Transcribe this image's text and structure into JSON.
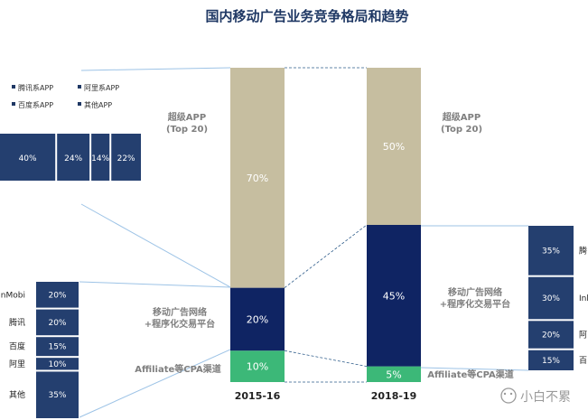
{
  "title": "国内移动广告业务竞争格局和趋势",
  "colors": {
    "super_app": "#c6bea0",
    "ad_network": "#0f2463",
    "affiliate": "#3cb878",
    "box": "#243f6f",
    "connector": "#9dc3e6",
    "dashed": "#2e5c8a"
  },
  "chart_data": {
    "type": "bar",
    "stacked": true,
    "categories": [
      "2015-16",
      "2018-19"
    ],
    "series": [
      {
        "name": "Affiliate等CPA渠道",
        "values": [
          10,
          5
        ],
        "labels": [
          "10%",
          "5%"
        ]
      },
      {
        "name": "移动广告网络\n+程序化交易平台",
        "values": [
          20,
          45
        ],
        "labels": [
          "20%",
          "45%"
        ]
      },
      {
        "name": "超级APP\n(Top 20)",
        "values": [
          70,
          50
        ],
        "labels": [
          "70%",
          "50%"
        ]
      }
    ],
    "ylim": [
      0,
      100
    ],
    "xlabel": "",
    "ylabel": ""
  },
  "side_labels": {
    "left": {
      "super_app": [
        "超级APP",
        "(Top 20)"
      ],
      "ad_network": [
        "移动广告网络",
        "+程序化交易平台"
      ],
      "affiliate": "Affiliate等CPA渠道"
    },
    "right": {
      "super_app": [
        "超级APP",
        "(Top 20)"
      ],
      "ad_network": [
        "移动广告网络",
        "+程序化交易平台"
      ],
      "affiliate": "Affiliate等CPA渠道"
    }
  },
  "legend": {
    "items": [
      "腾讯系APP",
      "阿里系APP",
      "百度系APP",
      "其他APP"
    ]
  },
  "super_app_breakdown": {
    "values": [
      40,
      24,
      14,
      22
    ],
    "labels": [
      "40%",
      "24%",
      "14%",
      "22%"
    ]
  },
  "left_network_breakdown": {
    "rows": [
      {
        "label": "InMobi",
        "value": 20,
        "text": "20%"
      },
      {
        "label": "腾讯",
        "value": 20,
        "text": "20%"
      },
      {
        "label": "百度",
        "value": 15,
        "text": "15%"
      },
      {
        "label": "阿里",
        "value": 10,
        "text": "10%"
      },
      {
        "label": "其他",
        "value": 35,
        "text": "35%"
      }
    ]
  },
  "right_network_breakdown": {
    "rows": [
      {
        "label": "腾",
        "value": 35,
        "text": "35%"
      },
      {
        "label": "Inl",
        "value": 30,
        "text": "30%"
      },
      {
        "label": "阿",
        "value": 20,
        "text": "20%"
      },
      {
        "label": "百",
        "value": 15,
        "text": "15%"
      }
    ]
  },
  "watermark": {
    "text": "小白不累"
  }
}
